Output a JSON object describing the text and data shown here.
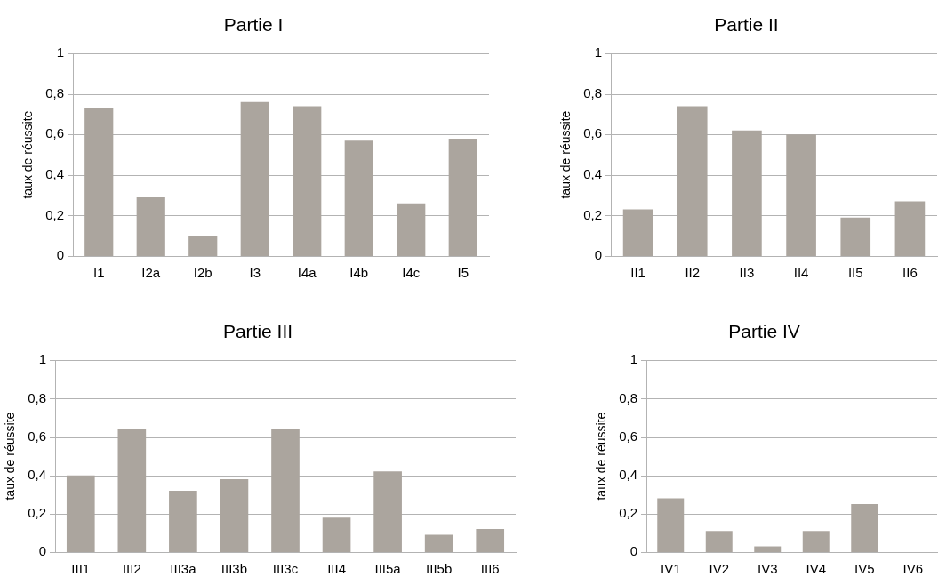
{
  "chart_data": [
    {
      "type": "bar",
      "title": "Partie I",
      "ylabel": "taux de réussite",
      "categories": [
        "I1",
        "I2a",
        "I2b",
        "I3",
        "I4a",
        "I4b",
        "I4c",
        "I5"
      ],
      "values": [
        0.73,
        0.29,
        0.1,
        0.76,
        0.74,
        0.57,
        0.26,
        0.58
      ],
      "color": "#aba59e",
      "ylim": [
        0,
        1
      ],
      "yticks": [
        {
          "value": 0,
          "label": "0"
        },
        {
          "value": 0.2,
          "label": "0,2"
        },
        {
          "value": 0.4,
          "label": "0,4"
        },
        {
          "value": 0.6,
          "label": "0,6"
        },
        {
          "value": 0.8,
          "label": "0,8"
        },
        {
          "value": 1,
          "label": "1"
        }
      ],
      "grid": "y"
    },
    {
      "type": "bar",
      "title": "Partie II",
      "ylabel": "taux de réussite",
      "categories": [
        "II1",
        "II2",
        "II3",
        "II4",
        "II5",
        "II6"
      ],
      "values": [
        0.23,
        0.74,
        0.62,
        0.6,
        0.19,
        0.27
      ],
      "color": "#aba59e",
      "ylim": [
        0,
        1
      ],
      "yticks": [
        {
          "value": 0,
          "label": "0"
        },
        {
          "value": 0.2,
          "label": "0,2"
        },
        {
          "value": 0.4,
          "label": "0,4"
        },
        {
          "value": 0.6,
          "label": "0,6"
        },
        {
          "value": 0.8,
          "label": "0,8"
        },
        {
          "value": 1,
          "label": "1"
        }
      ],
      "grid": "y"
    },
    {
      "type": "bar",
      "title": "Partie III",
      "ylabel": "taux de réussite",
      "categories": [
        "III1",
        "III2",
        "III3a",
        "III3b",
        "III3c",
        "III4",
        "III5a",
        "III5b",
        "III6"
      ],
      "values": [
        0.4,
        0.64,
        0.32,
        0.38,
        0.64,
        0.18,
        0.42,
        0.09,
        0.12
      ],
      "color": "#aba59e",
      "ylim": [
        0,
        1
      ],
      "yticks": [
        {
          "value": 0,
          "label": "0"
        },
        {
          "value": 0.2,
          "label": "0,2"
        },
        {
          "value": 0.4,
          "label": "0,4"
        },
        {
          "value": 0.6,
          "label": "0,6"
        },
        {
          "value": 0.8,
          "label": "0,8"
        },
        {
          "value": 1,
          "label": "1"
        }
      ],
      "grid": "y"
    },
    {
      "type": "bar",
      "title": "Partie IV",
      "ylabel": "taux de réussite",
      "categories": [
        "IV1",
        "IV2",
        "IV3",
        "IV4",
        "IV5",
        "IV6"
      ],
      "values": [
        0.28,
        0.11,
        0.03,
        0.11,
        0.25,
        0
      ],
      "color": "#aba59e",
      "ylim": [
        0,
        1
      ],
      "yticks": [
        {
          "value": 0,
          "label": "0"
        },
        {
          "value": 0.2,
          "label": "0,2"
        },
        {
          "value": 0.4,
          "label": "0,4"
        },
        {
          "value": 0.6,
          "label": "0,6"
        },
        {
          "value": 0.8,
          "label": "0,8"
        },
        {
          "value": 1,
          "label": "1"
        }
      ],
      "grid": "y"
    }
  ]
}
